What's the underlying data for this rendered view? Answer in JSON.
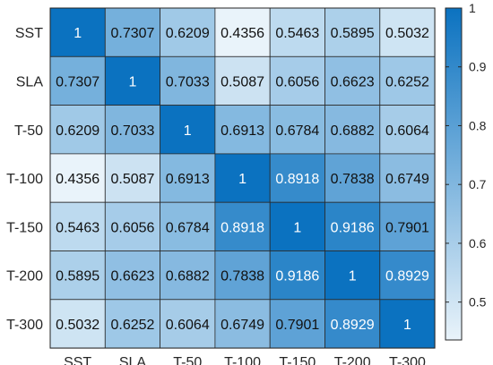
{
  "chart_data": {
    "type": "heatmap",
    "title": "",
    "xlabel": "",
    "ylabel": "",
    "x": [
      "SST",
      "SLA",
      "T-50",
      "T-100",
      "T-150",
      "T-200",
      "T-300"
    ],
    "y": [
      "SST",
      "SLA",
      "T-50",
      "T-100",
      "T-150",
      "T-200",
      "T-300"
    ],
    "values": [
      [
        1,
        0.7307,
        0.6209,
        0.4356,
        0.5463,
        0.5895,
        0.5032
      ],
      [
        0.7307,
        1,
        0.7033,
        0.5087,
        0.6056,
        0.6623,
        0.6252
      ],
      [
        0.6209,
        0.7033,
        1,
        0.6913,
        0.6784,
        0.6882,
        0.6064
      ],
      [
        0.4356,
        0.5087,
        0.6913,
        1,
        0.8918,
        0.7838,
        0.6749
      ],
      [
        0.5463,
        0.6056,
        0.6784,
        0.8918,
        1,
        0.9186,
        0.7901
      ],
      [
        0.5895,
        0.6623,
        0.6882,
        0.7838,
        0.9186,
        1,
        0.8929
      ],
      [
        0.5032,
        0.6252,
        0.6064,
        0.6749,
        0.7901,
        0.8929,
        1
      ]
    ],
    "value_labels": [
      [
        "1",
        "0.7307",
        "0.6209",
        "0.4356",
        "0.5463",
        "0.5895",
        "0.5032"
      ],
      [
        "0.7307",
        "1",
        "0.7033",
        "0.5087",
        "0.6056",
        "0.6623",
        "0.6252"
      ],
      [
        "0.6209",
        "0.7033",
        "1",
        "0.6913",
        "0.6784",
        "0.6882",
        "0.6064"
      ],
      [
        "0.4356",
        "0.5087",
        "0.6913",
        "1",
        "0.8918",
        "0.7838",
        "0.6749"
      ],
      [
        "0.5463",
        "0.6056",
        "0.6784",
        "0.8918",
        "1",
        "0.9186",
        "0.7901"
      ],
      [
        "0.5895",
        "0.6623",
        "0.6882",
        "0.7838",
        "0.9186",
        "1",
        "0.8929"
      ],
      [
        "0.5032",
        "0.6252",
        "0.6064",
        "0.6749",
        "0.7901",
        "0.8929",
        "1"
      ]
    ],
    "colorbar": {
      "range": [
        0.4356,
        1
      ],
      "ticks": [
        0.5,
        0.6,
        0.7,
        0.8,
        0.9,
        1
      ],
      "tick_labels": [
        "0.5",
        "0.6",
        "0.7",
        "0.8",
        "0.9",
        "1"
      ],
      "color_low": "#e9f3fa",
      "color_high": "#0b72c0"
    },
    "grid": true,
    "legend": "colorbar-right"
  }
}
